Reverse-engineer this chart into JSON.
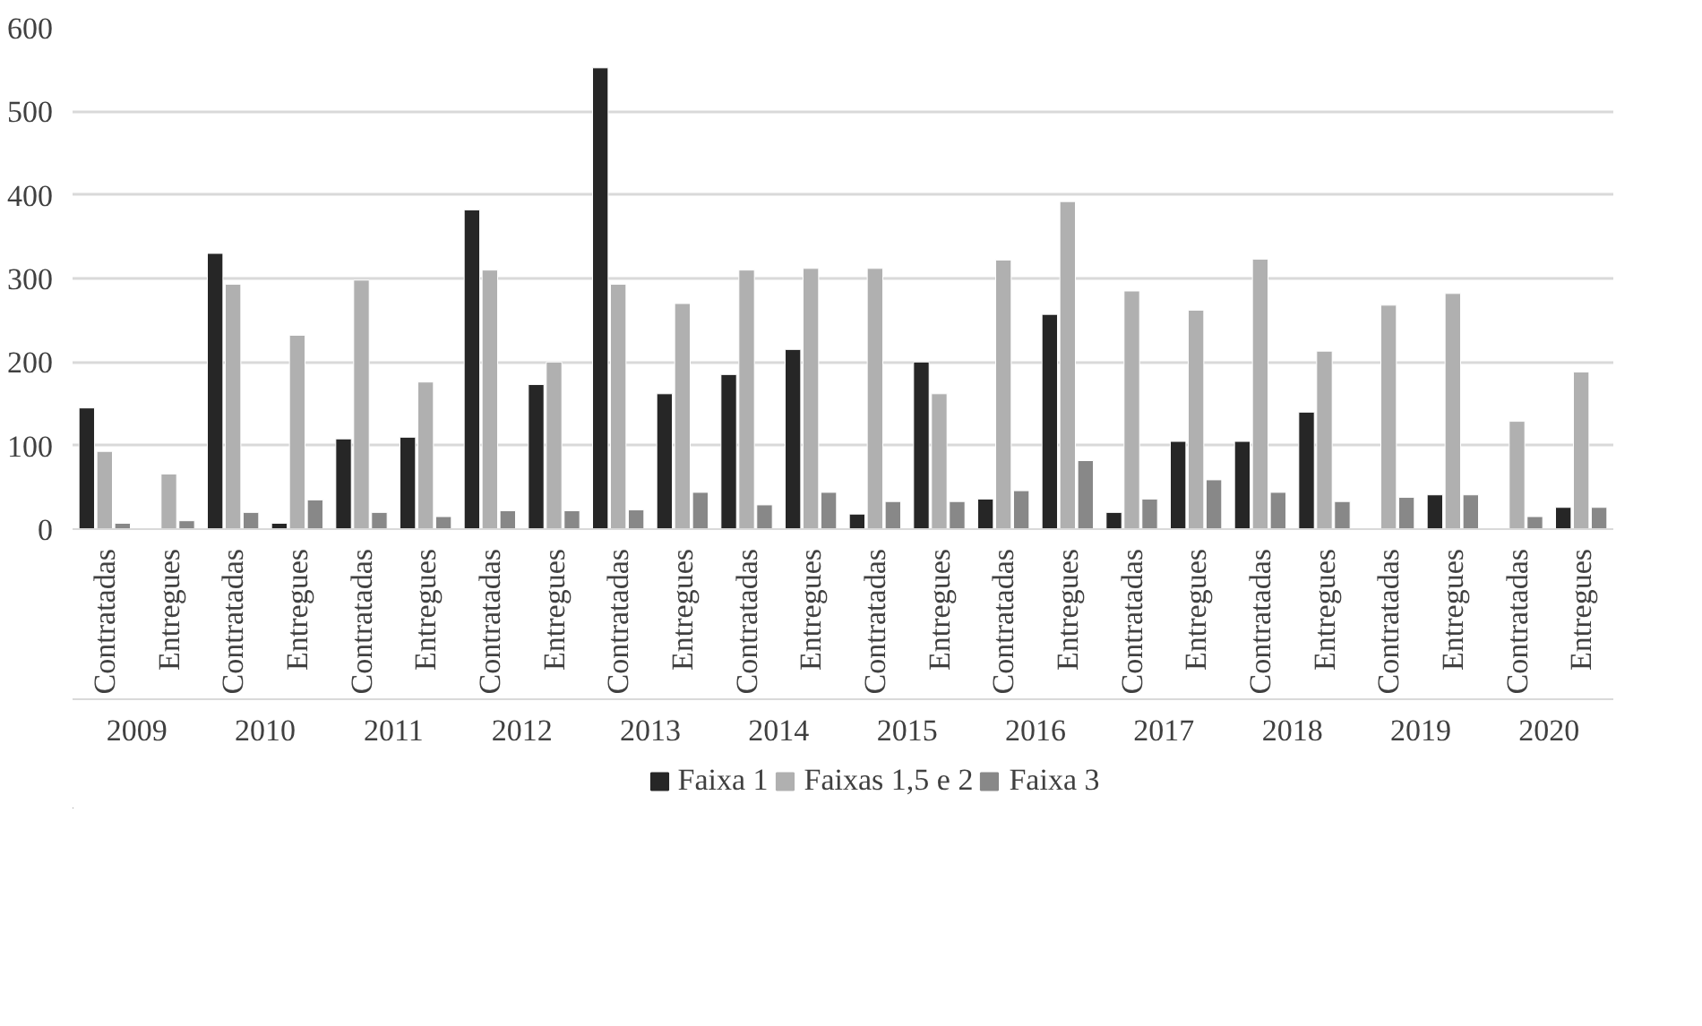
{
  "chart_data": {
    "type": "bar",
    "categories": [
      "Contratadas",
      "Entregues",
      "Contratadas",
      "Entregues",
      "Contratadas",
      "Entregues",
      "Contratadas",
      "Entregues",
      "Contratadas",
      "Entregues",
      "Contratadas",
      "Entregues",
      "Contratadas",
      "Entregues",
      "Contratadas",
      "Entregues",
      "Contratadas",
      "Entregues",
      "Contratadas",
      "Entregues",
      "Contratadas",
      "Entregues",
      "Contratadas",
      "Entregues"
    ],
    "annotations": [
      "2009",
      "2010",
      "2011",
      "2012",
      "2013",
      "2014",
      "2015",
      "2016",
      "2017",
      "2018",
      "2019",
      "2020"
    ],
    "series": [
      {
        "name": "Faixa 1",
        "color": "#262626",
        "values": [
          145,
          null,
          330,
          7,
          108,
          110,
          382,
          173,
          552,
          162,
          185,
          215,
          18,
          200,
          36,
          257,
          20,
          105,
          105,
          140,
          null,
          41,
          null,
          26
        ]
      },
      {
        "name": "Faixas 1,5 e 2",
        "color": "#b0b0b0",
        "values": [
          93,
          66,
          293,
          232,
          298,
          176,
          310,
          200,
          293,
          270,
          310,
          312,
          312,
          162,
          322,
          392,
          285,
          262,
          323,
          213,
          268,
          282,
          129,
          188
        ]
      },
      {
        "name": "Faixa 3",
        "color": "#888888",
        "values": [
          7,
          10,
          20,
          35,
          20,
          15,
          22,
          22,
          23,
          44,
          29,
          44,
          33,
          33,
          46,
          82,
          36,
          59,
          44,
          33,
          38,
          41,
          15,
          26
        ]
      }
    ],
    "ylim": [
      0,
      600
    ],
    "yticks": [
      0,
      100,
      200,
      300,
      400,
      500,
      600
    ],
    "grid": "y",
    "legend": "bottom"
  }
}
